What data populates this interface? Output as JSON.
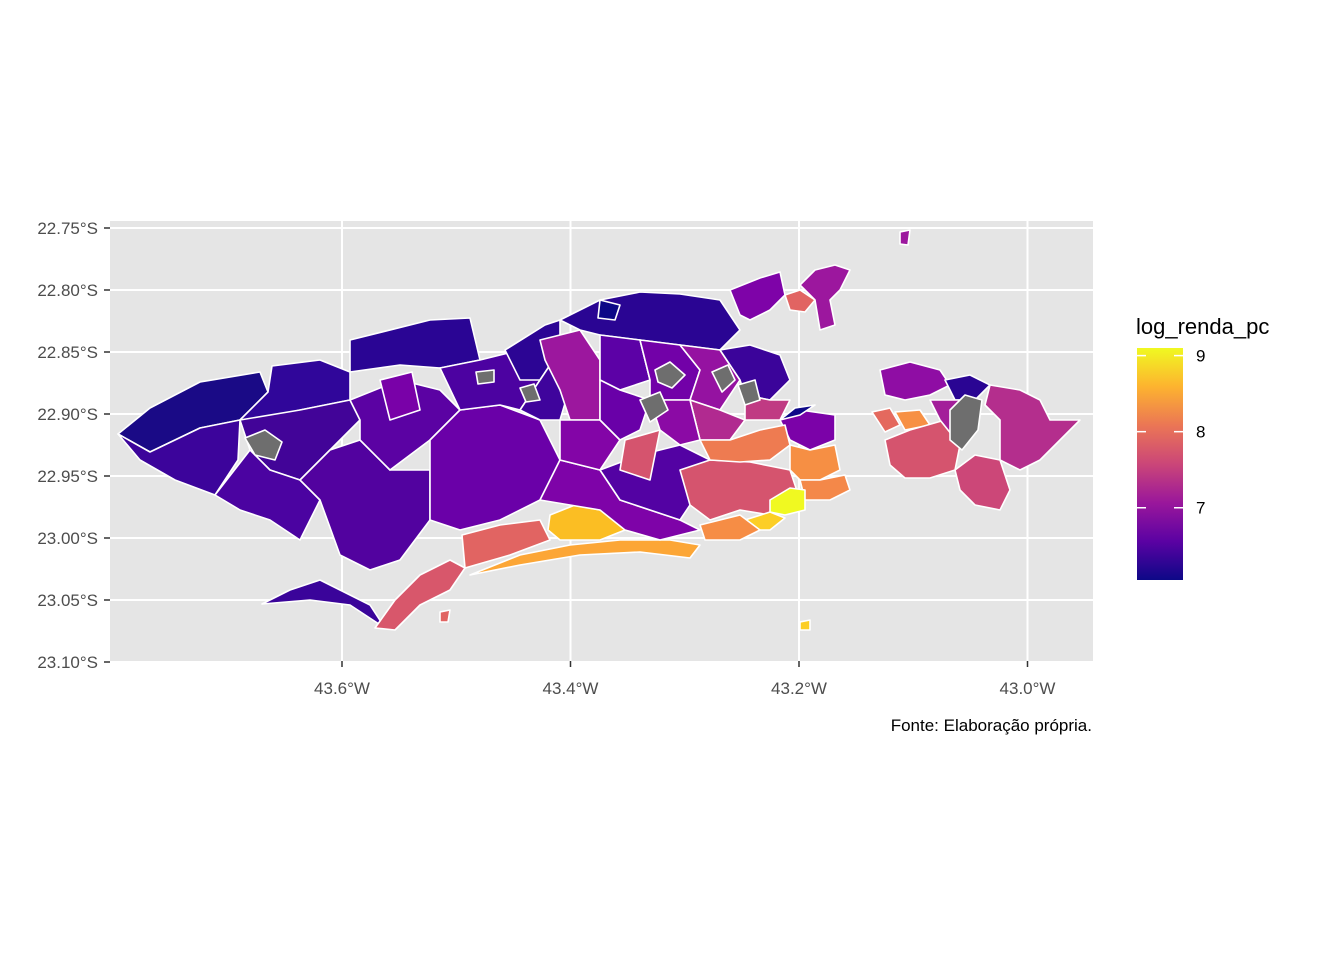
{
  "map": {
    "caption": "Fonte: Elaboração própria.",
    "background_color": "#e5e5e5",
    "grid_color": "#ffffff",
    "border_color": "#ffffff",
    "na_color": "#6e6e6e",
    "x_axis": {
      "ticks": [
        {
          "value": -43.6,
          "label": "43.6°W"
        },
        {
          "value": -43.4,
          "label": "43.4°W"
        },
        {
          "value": -43.2,
          "label": "43.2°W"
        },
        {
          "value": -43.0,
          "label": "43.0°W"
        }
      ],
      "range": [
        -43.8,
        -42.95
      ]
    },
    "y_axis": {
      "ticks": [
        {
          "value": -22.75,
          "label": "22.75°S"
        },
        {
          "value": -22.8,
          "label": "22.80°S"
        },
        {
          "value": -22.85,
          "label": "22.85°S"
        },
        {
          "value": -22.9,
          "label": "22.90°S"
        },
        {
          "value": -22.95,
          "label": "22.95°S"
        },
        {
          "value": -23.0,
          "label": "23.00°S"
        },
        {
          "value": -23.05,
          "label": "23.05°S"
        },
        {
          "value": -23.1,
          "label": "23.10°S"
        }
      ],
      "range": [
        -23.1,
        -22.75
      ]
    }
  },
  "legend": {
    "title": "log_renda_pc",
    "min": 6.05,
    "max": 9.1,
    "labels": [
      {
        "value": 9,
        "label": "9"
      },
      {
        "value": 8,
        "label": "8"
      },
      {
        "value": 7,
        "label": "7"
      }
    ],
    "colors": [
      "#0d0887",
      "#5b02a3",
      "#9a179b",
      "#cb4678",
      "#eb7655",
      "#fdb32f",
      "#f0f921"
    ]
  }
}
